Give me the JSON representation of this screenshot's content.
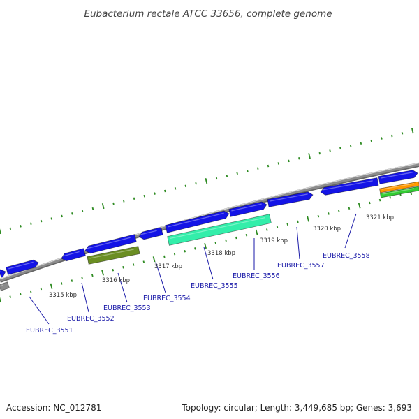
{
  "title": "Eubacterium rectale ATCC 33656, complete genome",
  "footer": {
    "accession": "Accession: NC_012781",
    "summary": "Topology: circular; Length: 3,449,685 bp; Genes: 3,693"
  },
  "colors": {
    "backbone": "#8c8c8c",
    "gene_forward": "#1414e6",
    "gene_reverse_cyan": "#33eeaa",
    "gene_reverse_olive": "#6b8e23",
    "gene_orange": "#ff9900",
    "gene_green": "#33cc33",
    "tick_color": "#2e8b22",
    "label_color": "#1a1aa8"
  },
  "ticks": {
    "labels": [
      "3315 kbp",
      "3316 kbp",
      "3317 kbp",
      "3318 kbp",
      "3319 kbp",
      "3320 kbp",
      "3321 kbp"
    ]
  },
  "genes": [
    {
      "id": "EUBREC_3551"
    },
    {
      "id": "EUBREC_3552"
    },
    {
      "id": "EUBREC_3553"
    },
    {
      "id": "EUBREC_3554"
    },
    {
      "id": "EUBREC_3555"
    },
    {
      "id": "EUBREC_3556"
    },
    {
      "id": "EUBREC_3557"
    },
    {
      "id": "EUBREC_3558"
    }
  ]
}
